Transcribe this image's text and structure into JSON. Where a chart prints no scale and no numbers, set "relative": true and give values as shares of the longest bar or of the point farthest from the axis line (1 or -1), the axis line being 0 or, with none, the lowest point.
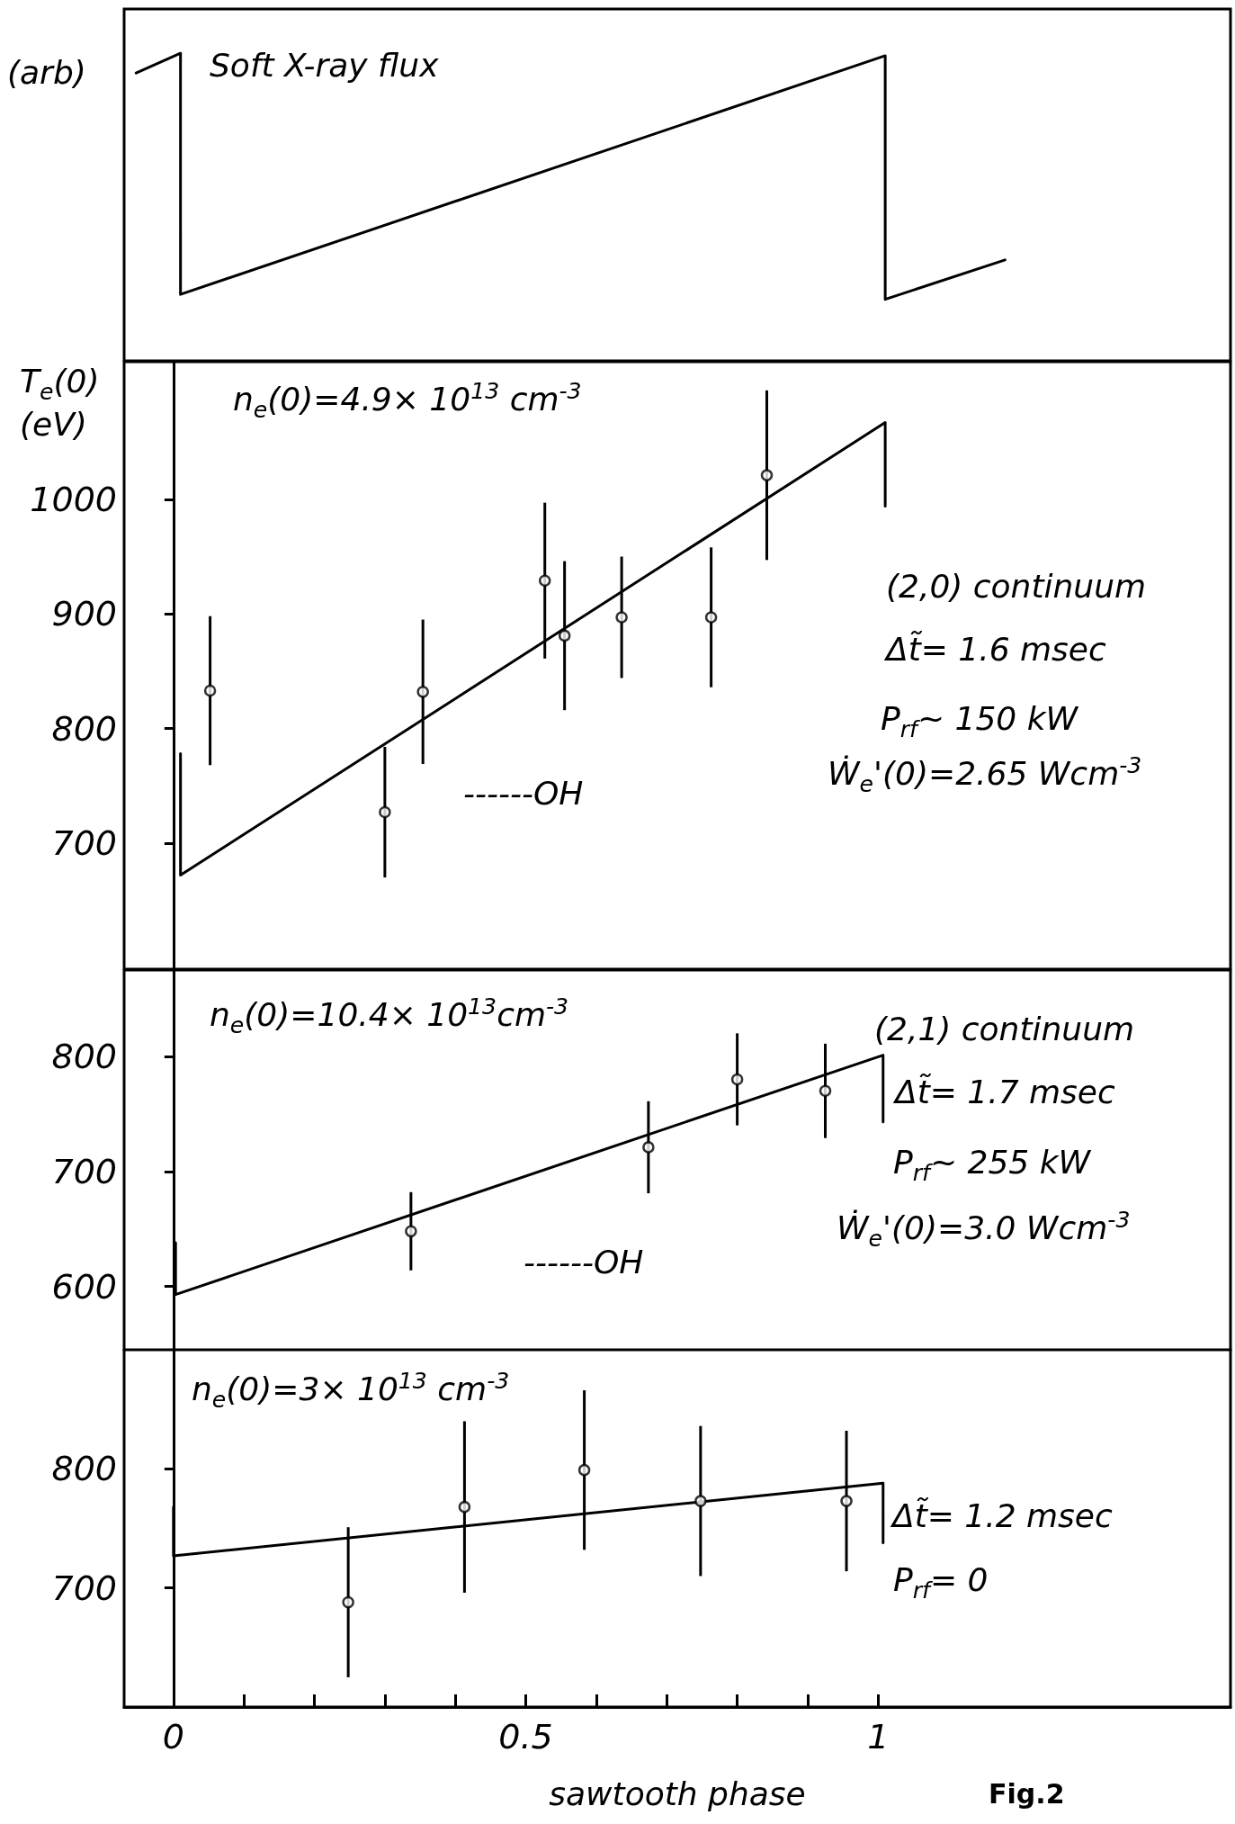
{
  "chart_data": [
    {
      "type": "line",
      "relative": true,
      "title": "Soft X-ray flux",
      "ylabel": "(arb)",
      "x": [
        -0.053,
        0.01,
        0.01,
        1.01,
        1.01,
        1.18
      ],
      "values": [
        0.92,
        1,
        0.02,
        0.99,
        0,
        0.16
      ],
      "color": "#000000",
      "marker": "none",
      "xlim": [
        -0.07,
        1.5
      ],
      "tick_labels": false
    },
    {
      "type": "scatter",
      "ylabel": "T$_{e}$(0)\n(eV)",
      "xlim": [
        -0.07,
        1.5
      ],
      "ylim": [
        590,
        1120
      ],
      "yticks": [
        700,
        800,
        900,
        1000
      ],
      "tick_labels": "y",
      "series": [
        {
          "marker": "circle",
          "color": "#000000",
          "x": [
            0.052,
            0.3,
            0.354,
            0.527,
            0.555,
            0.636,
            0.763,
            0.842
          ],
          "values": [
            833,
            727,
            832,
            929,
            881,
            897,
            897,
            1021
          ],
          "errors": [
            65,
            57,
            63,
            68,
            65,
            53,
            61,
            74
          ]
        },
        {
          "type": "line",
          "marker": "none",
          "color": "#000000",
          "x": [
            0.01,
            0.01,
            1.01,
            1.01
          ],
          "values": [
            778,
            672,
            1067,
            994
          ]
        }
      ],
      "annotations": [
        "n$_{e}$(0)=4.9× 10$^{13}$ cm$^{-3}$",
        "(2,0) continuum",
        "Δt̃= 1.6 msec",
        "P$_{rf}$~ 150 kW",
        "Ẇ$_{e}$'(0)=2.65 Wcm$^{-3}$",
        "------OH"
      ]
    },
    {
      "type": "scatter",
      "xlim": [
        -0.07,
        1.5
      ],
      "ylim": [
        545,
        875
      ],
      "yticks": [
        600,
        700,
        800
      ],
      "tick_labels": "y",
      "series": [
        {
          "marker": "circle",
          "color": "#000000",
          "x": [
            0.337,
            0.674,
            0.8,
            0.925
          ],
          "values": [
            648,
            721,
            780,
            770
          ],
          "errors": [
            34,
            40,
            40,
            41
          ]
        },
        {
          "type": "line",
          "marker": "none",
          "color": "#000000",
          "x": [
            0.003,
            0.003,
            1.007,
            1.007
          ],
          "values": [
            638,
            593,
            801,
            743
          ]
        }
      ],
      "annotations": [
        "n$_{e}$(0)=10.4× 10$^{13}$cm$^{-3}$",
        "(2,1) continuum",
        "Δt̃= 1.7 msec",
        "P$_{rf}$~ 255 kW",
        "Ẇ$_{e}$'(0)=3.0 Wcm$^{-3}$",
        "------OH"
      ]
    },
    {
      "type": "scatter",
      "xlabel": "sawtooth phase",
      "xlim": [
        -0.07,
        1.5
      ],
      "ylim": [
        600,
        900
      ],
      "yticks": [
        700,
        800
      ],
      "xticks": [
        0,
        {
          "value": 0.1,
          "label": null
        },
        {
          "value": 0.2,
          "label": null
        },
        {
          "value": 0.3,
          "label": null
        },
        {
          "value": 0.4,
          "label": null
        },
        0.5,
        {
          "value": 0.6,
          "label": null
        },
        {
          "value": 0.7,
          "label": null
        },
        {
          "value": 0.8,
          "label": null
        },
        {
          "value": 0.9,
          "label": null
        },
        1
      ],
      "series": [
        {
          "marker": "circle",
          "color": "#000000",
          "x": [
            0.248,
            0.413,
            0.583,
            0.748,
            0.955
          ],
          "values": [
            688,
            768,
            799,
            773,
            773
          ],
          "errors": [
            63,
            72,
            67,
            63,
            59
          ]
        },
        {
          "type": "line",
          "marker": "none",
          "color": "#000000",
          "x": [
            0,
            0,
            1.007,
            1.007
          ],
          "values": [
            768,
            727,
            788,
            738
          ]
        }
      ],
      "annotations": [
        "n$_{e}$(0)=3× 10$^{13}$ cm$^{-3}$",
        "Δt̃= 1.2 msec",
        "P$_{rf}$= 0",
        "Fig.2"
      ]
    }
  ]
}
